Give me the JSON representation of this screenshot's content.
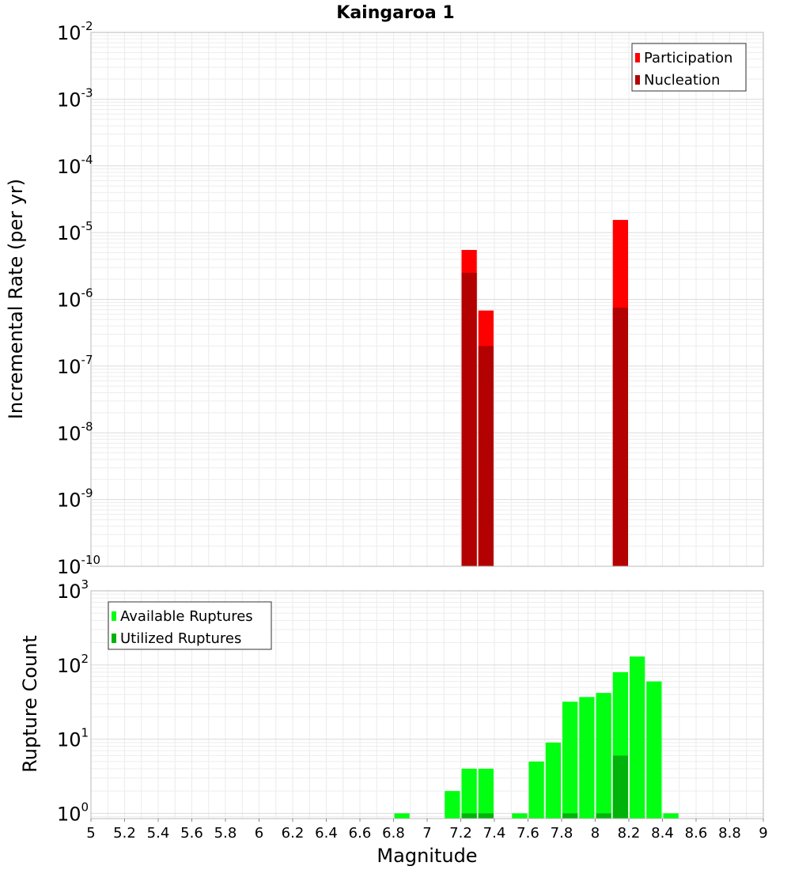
{
  "chart_data": [
    {
      "id": "rate",
      "type": "bar",
      "title": "Kaingaroa 1",
      "ylabel": "Incremental Rate (per yr)",
      "yscale": "log",
      "ylim": [
        1e-10,
        0.01
      ],
      "xlim": [
        5,
        9
      ],
      "y_ticks": [
        {
          "base": "10",
          "exp": "-2",
          "value": 0.01
        },
        {
          "base": "10",
          "exp": "-3",
          "value": 0.001
        },
        {
          "base": "10",
          "exp": "-4",
          "value": 0.0001
        },
        {
          "base": "10",
          "exp": "-5",
          "value": 1e-05
        },
        {
          "base": "10",
          "exp": "-6",
          "value": 1e-06
        },
        {
          "base": "10",
          "exp": "-7",
          "value": 1e-07
        },
        {
          "base": "10",
          "exp": "-8",
          "value": 1e-08
        },
        {
          "base": "10",
          "exp": "-9",
          "value": 1e-09
        },
        {
          "base": "10",
          "exp": "-10",
          "value": 1e-10
        }
      ],
      "legend": {
        "position": "top-right"
      },
      "series": [
        {
          "name": "Participation",
          "color": "#ff0000",
          "x": [
            7.25,
            7.35,
            8.15
          ],
          "values": [
            5.5e-06,
            6.8e-07,
            1.55e-05
          ]
        },
        {
          "name": "Nucleation",
          "color": "#b30000",
          "x": [
            7.25,
            7.35,
            8.15
          ],
          "values": [
            2.5e-06,
            2e-07,
            7.5e-07
          ]
        }
      ],
      "grid": true
    },
    {
      "id": "count",
      "type": "bar",
      "ylabel": "Rupture Count",
      "xlabel": "Magnitude",
      "yscale": "log",
      "ylim": [
        0.85,
        1000
      ],
      "xlim": [
        5,
        9
      ],
      "x_ticks": [
        "5",
        "5.2",
        "5.4",
        "5.6",
        "5.8",
        "6",
        "6.2",
        "6.4",
        "6.6",
        "6.8",
        "7",
        "7.2",
        "7.4",
        "7.6",
        "7.8",
        "8",
        "8.2",
        "8.4",
        "8.6",
        "8.8",
        "9"
      ],
      "y_ticks": [
        {
          "base": "10",
          "exp": "3",
          "value": 1000
        },
        {
          "base": "10",
          "exp": "2",
          "value": 100
        },
        {
          "base": "10",
          "exp": "1",
          "value": 10
        },
        {
          "base": "10",
          "exp": "0",
          "value": 1
        }
      ],
      "legend": {
        "position": "top-left"
      },
      "series": [
        {
          "name": "Available Ruptures",
          "color": "#00ff10",
          "x": [
            6.85,
            7.15,
            7.25,
            7.35,
            7.55,
            7.65,
            7.75,
            7.85,
            7.95,
            8.05,
            8.15,
            8.25,
            8.35,
            8.45
          ],
          "values": [
            1,
            2,
            4,
            4,
            1,
            5,
            9,
            32,
            37,
            42,
            80,
            130,
            60,
            1
          ]
        },
        {
          "name": "Utilized Ruptures",
          "color": "#00b30b",
          "x": [
            7.25,
            7.35,
            7.85,
            8.05,
            8.15
          ],
          "values": [
            1,
            1,
            1,
            1,
            6
          ]
        }
      ],
      "grid": true
    }
  ]
}
